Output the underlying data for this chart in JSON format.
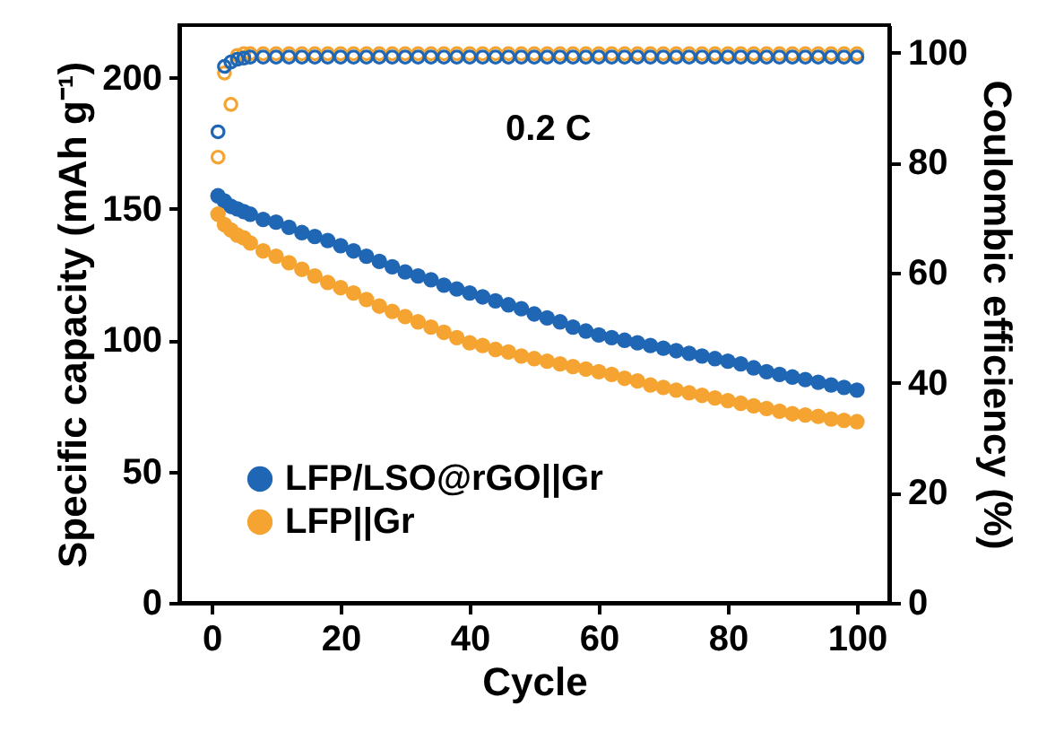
{
  "chart_data": {
    "type": "scatter",
    "xlabel": "Cycle",
    "ylabel": "Specific capacity (mAh g⁻¹)",
    "y2label": "Coulombic efficiency (%)",
    "annotations": [
      "0.2 C"
    ],
    "xlim": [
      -5,
      105
    ],
    "xticks": [
      0,
      20,
      40,
      60,
      80,
      100
    ],
    "ylim": [
      0,
      220
    ],
    "yticks": [
      0,
      50,
      100,
      150,
      200
    ],
    "y2lim": [
      0,
      105
    ],
    "y2ticks": [
      0,
      20,
      40,
      60,
      80,
      100
    ],
    "grid": false,
    "legend": "bottom left",
    "marker": "circle",
    "x": [
      1,
      2,
      3,
      4,
      5,
      6,
      8,
      10,
      12,
      14,
      16,
      18,
      20,
      22,
      24,
      26,
      28,
      30,
      32,
      34,
      36,
      38,
      40,
      42,
      44,
      46,
      48,
      50,
      52,
      54,
      56,
      58,
      60,
      62,
      64,
      66,
      68,
      70,
      72,
      74,
      76,
      78,
      80,
      82,
      84,
      86,
      88,
      90,
      92,
      94,
      96,
      98,
      100
    ],
    "series": [
      {
        "name": "LFP/LSO@rGO||Gr",
        "color": "#1f66b4",
        "values": [
          155,
          153,
          151,
          150,
          149,
          148,
          146,
          145,
          143,
          141,
          139.5,
          138,
          136,
          134,
          132,
          130,
          128,
          126,
          124.5,
          123,
          121,
          119.5,
          118,
          116.5,
          115,
          113.5,
          112,
          110,
          108.5,
          107,
          105,
          103.5,
          102,
          101,
          100,
          99,
          98,
          97,
          96,
          95,
          94,
          93,
          92,
          91,
          89.5,
          88,
          87,
          86,
          85,
          84,
          83,
          82,
          81
        ]
      },
      {
        "name": "LFP||Gr",
        "color": "#f5a431",
        "values": [
          148,
          144,
          142,
          140,
          139,
          137,
          134,
          132,
          129.5,
          127,
          124.5,
          122,
          120,
          118,
          115.5,
          113,
          111,
          109,
          107,
          105,
          103,
          101,
          99,
          98,
          96.5,
          95.5,
          94,
          93,
          92,
          91,
          90,
          89,
          88,
          87,
          85.5,
          84.5,
          83,
          82,
          81,
          80,
          79,
          78,
          77,
          76,
          75,
          74,
          73,
          72,
          71.5,
          71,
          70,
          69.5,
          69
        ]
      },
      {
        "color": "#f5a431",
        "axis": "y2",
        "values": [
          81,
          96.3,
          90.6,
          99.5,
          99.8,
          99.8,
          99.8,
          99.8,
          99.8,
          99.8,
          99.8,
          99.8,
          99.8,
          99.8,
          99.8,
          99.8,
          99.8,
          99.8,
          99.8,
          99.8,
          99.8,
          99.8,
          99.8,
          99.8,
          99.8,
          99.8,
          99.8,
          99.8,
          99.8,
          99.8,
          99.8,
          99.8,
          99.8,
          99.8,
          99.8,
          99.8,
          99.8,
          99.8,
          99.8,
          99.8,
          99.8,
          99.8,
          99.8,
          99.8,
          99.8,
          99.8,
          99.8,
          99.8,
          99.8,
          99.8,
          99.8,
          99.8,
          99.8
        ]
      },
      {
        "color": "#1f66b4",
        "axis": "y2",
        "values": [
          85.6,
          97.5,
          98.3,
          98.8,
          99,
          99.2,
          99.2,
          99.2,
          99.2,
          99.2,
          99.2,
          99.2,
          99.2,
          99.2,
          99.2,
          99.2,
          99.2,
          99.2,
          99.2,
          99.2,
          99.2,
          99.2,
          99.2,
          99.2,
          99.2,
          99.2,
          99.2,
          99.2,
          99.2,
          99.2,
          99.2,
          99.2,
          99.2,
          99.2,
          99.2,
          99.2,
          99.2,
          99.2,
          99.2,
          99.2,
          99.2,
          99.2,
          99.2,
          99.2,
          99.2,
          99.2,
          99.2,
          99.2,
          99.2,
          99.2,
          99.2,
          99.2,
          99.2
        ]
      }
    ]
  }
}
